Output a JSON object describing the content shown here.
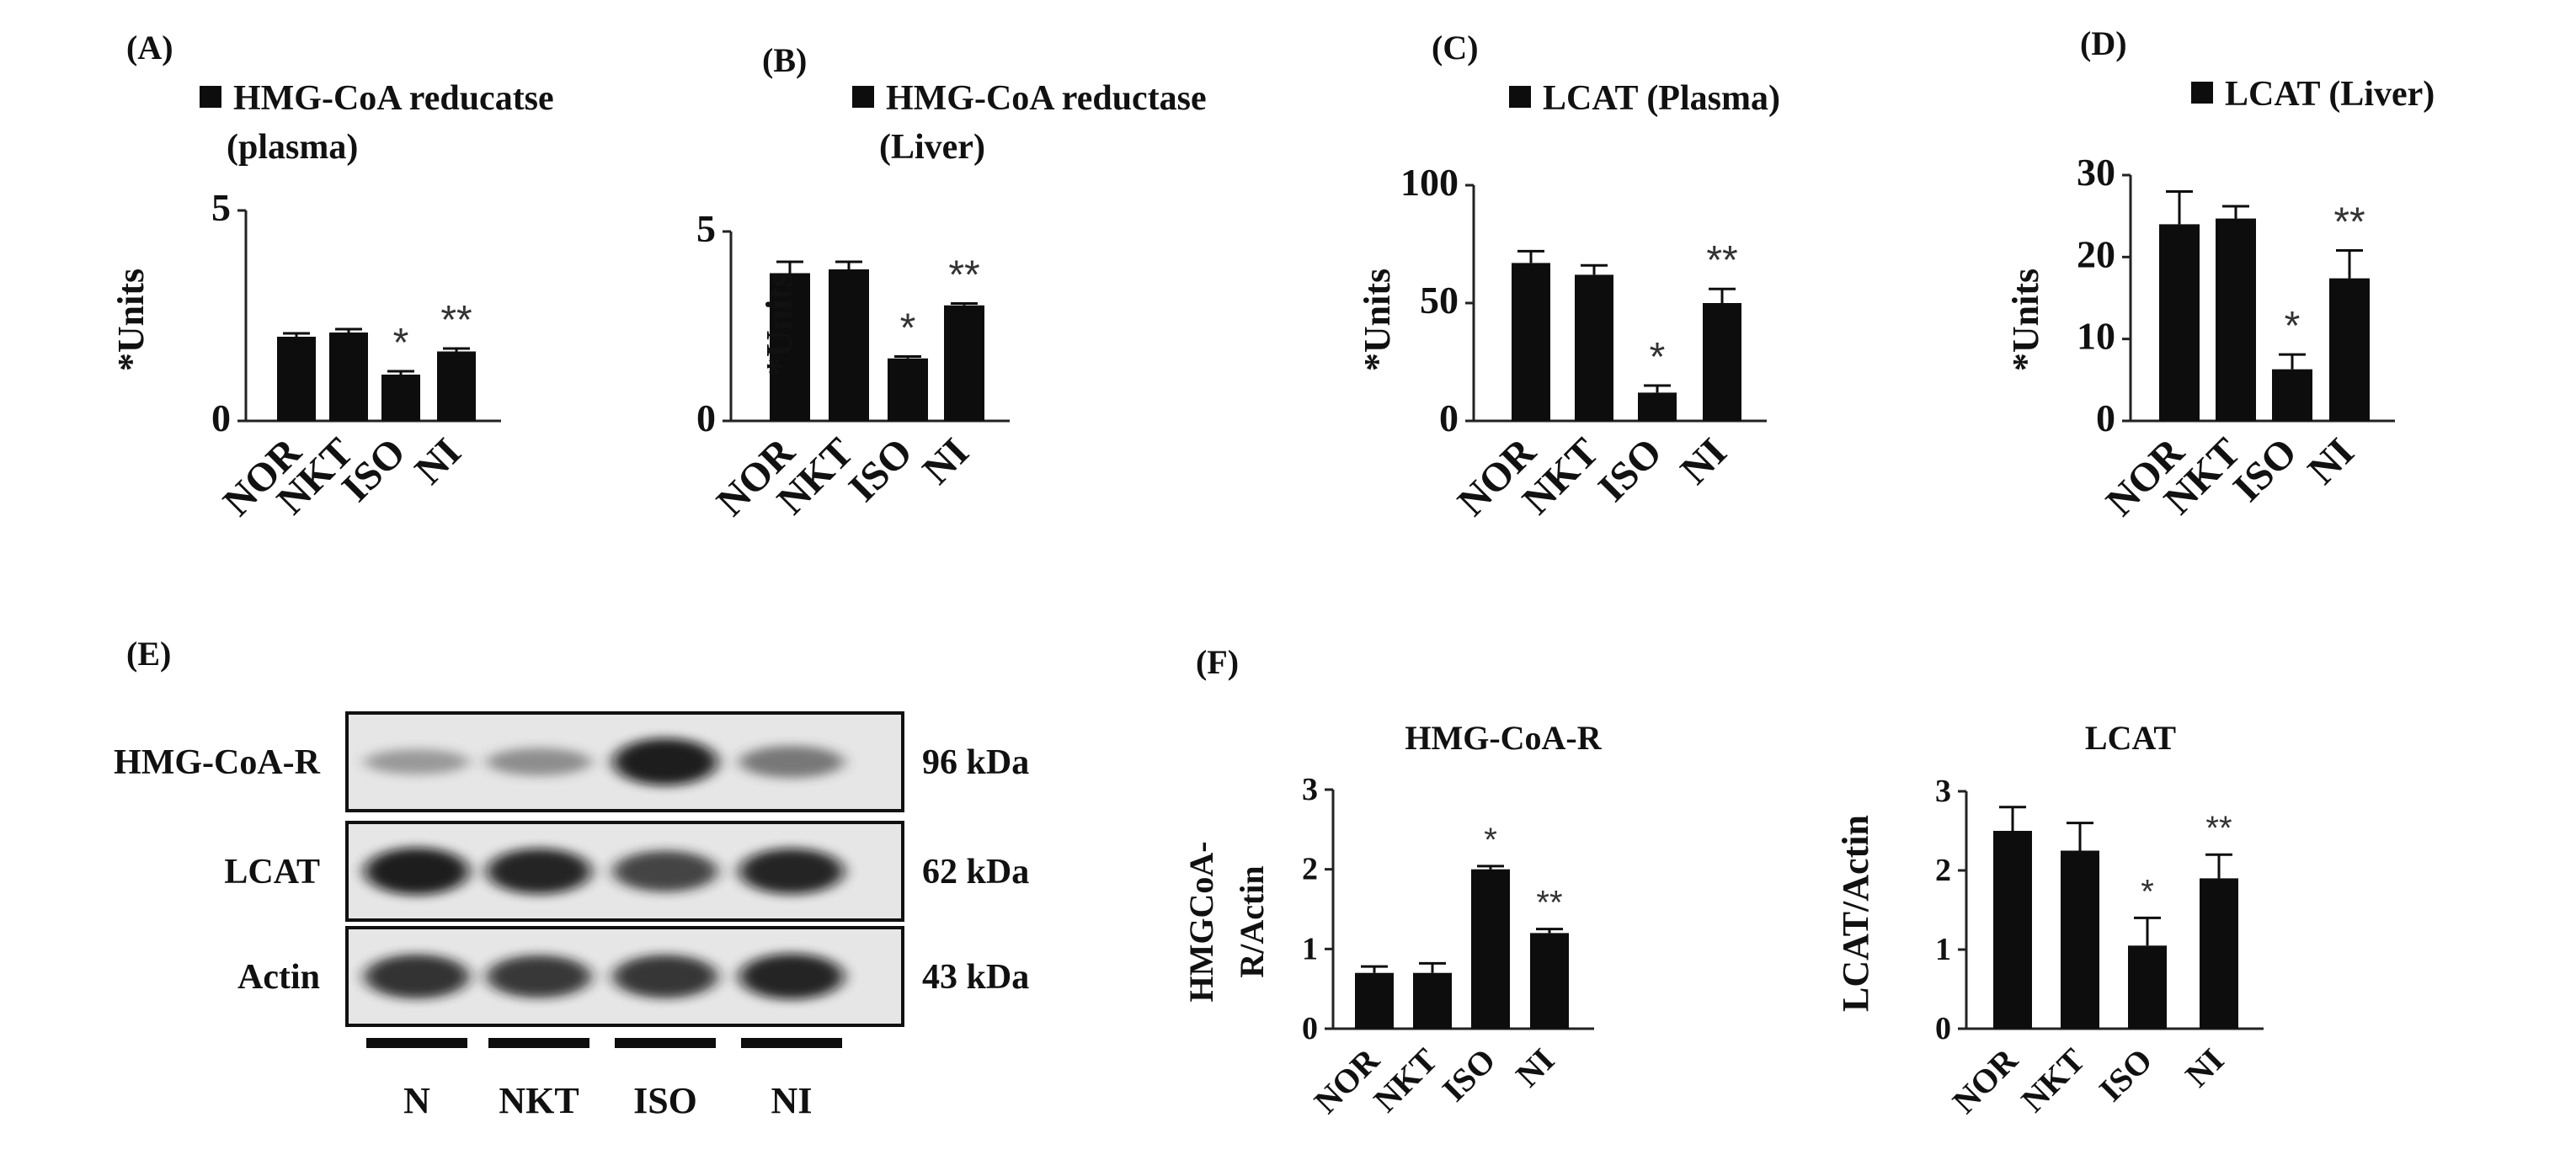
{
  "colors": {
    "bar": "#0d0d0d",
    "axis": "#222222",
    "blot_bg": "#e6e6e6",
    "text": "#111111"
  },
  "chart_data": [
    {
      "type": "bar",
      "panel_label": "(A)",
      "legend": "HMG-CoA reducatse (plasma)",
      "legend_lines": [
        "HMG-CoA reducatse",
        "(plasma)"
      ],
      "ylabel": "*Units",
      "ylim": [
        0,
        5
      ],
      "yticks": [
        "0",
        "5"
      ],
      "categories": [
        "NOR",
        "NKT",
        "ISO",
        "NI"
      ],
      "values": [
        2.0,
        2.1,
        1.1,
        1.65
      ],
      "errors": [
        0.08,
        0.08,
        0.08,
        0.07
      ],
      "significance": [
        "",
        "",
        "*",
        "**"
      ]
    },
    {
      "type": "bar",
      "panel_label": "(B)",
      "legend": "HMG-CoA reductase (Liver)",
      "legend_lines": [
        "HMG-CoA reductase",
        "(Liver)"
      ],
      "ylabel": "*Units",
      "ylim": [
        0,
        5
      ],
      "yticks": [
        "0",
        "5"
      ],
      "categories": [
        "NOR",
        "NKT",
        "ISO",
        "NI"
      ],
      "values": [
        3.9,
        4.0,
        1.65,
        3.05
      ],
      "errors": [
        0.3,
        0.2,
        0.05,
        0.05
      ],
      "significance": [
        "",
        "",
        "*",
        "**"
      ]
    },
    {
      "type": "bar",
      "panel_label": "(C)",
      "legend": "LCAT (Plasma)",
      "legend_lines": [
        "LCAT (Plasma)"
      ],
      "ylabel": "*Units",
      "ylim": [
        0,
        100
      ],
      "yticks": [
        "0",
        "50",
        "100"
      ],
      "categories": [
        "NOR",
        "NKT",
        "ISO",
        "NI"
      ],
      "values": [
        67,
        62,
        12,
        50
      ],
      "errors": [
        5,
        4,
        3,
        6
      ],
      "significance": [
        "",
        "",
        "*",
        "**"
      ]
    },
    {
      "type": "bar",
      "panel_label": "(D)",
      "legend": "LCAT (Liver)",
      "legend_lines": [
        "LCAT (Liver)"
      ],
      "ylabel": "*Units",
      "ylim": [
        0,
        30
      ],
      "yticks": [
        "0",
        "10",
        "20",
        "30"
      ],
      "categories": [
        "NOR",
        "NKT",
        "ISO",
        "NI"
      ],
      "values": [
        24,
        24.7,
        6.3,
        17.4
      ],
      "errors": [
        4,
        1.5,
        1.8,
        3.4
      ],
      "significance": [
        "",
        "",
        "*",
        "**"
      ]
    },
    {
      "type": "bar",
      "panel_label": "(F)",
      "title": "HMG-CoA-R",
      "ylabel_lines": [
        "HMGCoA-",
        "R/Actin"
      ],
      "ylim": [
        0,
        3
      ],
      "yticks": [
        "0",
        "1",
        "2",
        "3"
      ],
      "categories": [
        "NOR",
        "NKT",
        "ISO",
        "NI"
      ],
      "values": [
        0.7,
        0.7,
        2.0,
        1.2
      ],
      "errors": [
        0.08,
        0.12,
        0.04,
        0.05
      ],
      "significance": [
        "",
        "",
        "*",
        "**"
      ]
    },
    {
      "type": "bar",
      "title": "LCAT",
      "ylabel": "LCAT/Actin",
      "ylim": [
        0,
        3
      ],
      "yticks": [
        "0",
        "1",
        "2",
        "3"
      ],
      "categories": [
        "NOR",
        "NKT",
        "ISO",
        "NI"
      ],
      "values": [
        2.5,
        2.25,
        1.05,
        1.9
      ],
      "errors": [
        0.3,
        0.35,
        0.35,
        0.3
      ],
      "significance": [
        "",
        "",
        "*",
        "**"
      ]
    }
  ],
  "blot": {
    "panel_label": "(E)",
    "rows": [
      {
        "protein": "HMG-CoA-R",
        "size": "96 kDa",
        "intensity": [
          0.22,
          0.3,
          0.95,
          0.45
        ]
      },
      {
        "protein": "LCAT",
        "size": "62 kDa",
        "intensity": [
          0.95,
          0.9,
          0.75,
          0.9
        ]
      },
      {
        "protein": "Actin",
        "size": "43 kDa",
        "intensity": [
          0.85,
          0.8,
          0.82,
          0.9
        ]
      }
    ],
    "lanes": [
      "N",
      "NKT",
      "ISO",
      "NI"
    ]
  }
}
